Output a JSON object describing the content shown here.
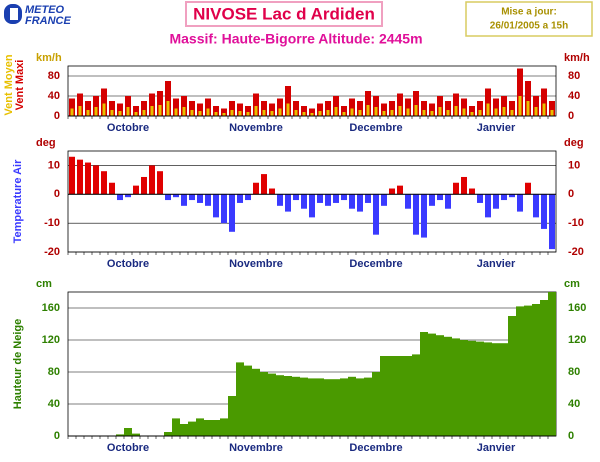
{
  "header": {
    "logo": [
      "METEO",
      "FRANCE"
    ],
    "title": "NIVOSE Lac d Ardiden",
    "subtitle": "Massif: Haute-Bigorre Altitude: 2445m",
    "update": [
      "Mise a jour:",
      "26/01/2005 a 15h"
    ]
  },
  "chart_data": [
    {
      "type": "bar",
      "unit": "km/h",
      "ylim": [
        0,
        100
      ],
      "yticks": [
        0,
        40,
        80
      ],
      "grid": true,
      "categories": [
        null,
        null,
        null,
        null,
        null,
        null,
        null,
        "Octobre",
        null,
        null,
        null,
        null,
        null,
        null,
        null,
        null,
        null,
        null,
        null,
        null,
        null,
        null,
        null,
        "Novembre",
        null,
        null,
        null,
        null,
        null,
        null,
        null,
        null,
        null,
        null,
        null,
        null,
        null,
        null,
        "Decembre",
        null,
        null,
        null,
        null,
        null,
        null,
        null,
        null,
        null,
        null,
        null,
        null,
        null,
        null,
        "Janvier",
        null,
        null,
        null,
        null,
        null,
        null,
        null
      ],
      "series": [
        {
          "name": "Vent Maxi",
          "color": "#d40000",
          "values": [
            35,
            45,
            30,
            40,
            55,
            30,
            25,
            40,
            20,
            30,
            45,
            50,
            70,
            35,
            40,
            30,
            25,
            35,
            20,
            15,
            30,
            25,
            20,
            45,
            30,
            25,
            35,
            60,
            30,
            20,
            15,
            25,
            30,
            40,
            20,
            35,
            30,
            50,
            40,
            25,
            30,
            45,
            35,
            50,
            30,
            25,
            40,
            30,
            45,
            35,
            20,
            30,
            55,
            35,
            40,
            30,
            95,
            70,
            40,
            55,
            30
          ]
        },
        {
          "name": "Vent Moyen",
          "color": "#e8c000",
          "values": [
            15,
            20,
            12,
            18,
            25,
            12,
            10,
            18,
            8,
            12,
            20,
            22,
            30,
            15,
            18,
            12,
            10,
            15,
            8,
            6,
            12,
            10,
            8,
            20,
            12,
            10,
            15,
            25,
            12,
            8,
            6,
            10,
            12,
            18,
            8,
            15,
            12,
            22,
            18,
            10,
            12,
            20,
            15,
            22,
            12,
            10,
            18,
            12,
            20,
            15,
            8,
            12,
            25,
            15,
            18,
            12,
            40,
            30,
            18,
            25,
            12
          ]
        }
      ]
    },
    {
      "type": "bar",
      "unit": "deg",
      "y_label": "Temperature Air",
      "ylim": [
        -20,
        15
      ],
      "yticks": [
        -20,
        -10,
        0,
        10
      ],
      "grid": true,
      "colors": {
        "above": "#e00000",
        "below": "#3a3aff"
      },
      "categories": [
        null,
        null,
        null,
        null,
        null,
        null,
        null,
        "Octobre",
        null,
        null,
        null,
        null,
        null,
        null,
        null,
        null,
        null,
        null,
        null,
        null,
        null,
        null,
        null,
        "Novembre",
        null,
        null,
        null,
        null,
        null,
        null,
        null,
        null,
        null,
        null,
        null,
        null,
        null,
        null,
        "Decembre",
        null,
        null,
        null,
        null,
        null,
        null,
        null,
        null,
        null,
        null,
        null,
        null,
        null,
        null,
        "Janvier",
        null,
        null,
        null,
        null,
        null,
        null,
        null
      ],
      "values": [
        13,
        12,
        11,
        10,
        8,
        4,
        -2,
        -1,
        3,
        6,
        10,
        8,
        -2,
        -1,
        -4,
        -2,
        -3,
        -4,
        -8,
        -10,
        -13,
        -3,
        -2,
        4,
        7,
        2,
        -4,
        -6,
        -2,
        -5,
        -8,
        -3,
        -4,
        -3,
        -2,
        -5,
        -6,
        -3,
        -14,
        -4,
        2,
        3,
        -5,
        -14,
        -15,
        -4,
        -2,
        -5,
        4,
        6,
        2,
        -3,
        -8,
        -5,
        -2,
        -1,
        -6,
        4,
        -8,
        -12,
        -19
      ]
    },
    {
      "type": "bar",
      "unit": "cm",
      "y_label": "Hauteur de Neige",
      "ylim": [
        0,
        180
      ],
      "yticks": [
        0,
        40,
        80,
        120,
        160
      ],
      "grid": true,
      "color": "#4a9a00",
      "categories": [
        null,
        null,
        null,
        null,
        null,
        null,
        null,
        "Octobre",
        null,
        null,
        null,
        null,
        null,
        null,
        null,
        null,
        null,
        null,
        null,
        null,
        null,
        null,
        null,
        "Novembre",
        null,
        null,
        null,
        null,
        null,
        null,
        null,
        null,
        null,
        null,
        null,
        null,
        null,
        null,
        "Decembre",
        null,
        null,
        null,
        null,
        null,
        null,
        null,
        null,
        null,
        null,
        null,
        null,
        null,
        null,
        "Janvier",
        null,
        null,
        null,
        null,
        null,
        null,
        null
      ],
      "values": [
        0,
        0,
        0,
        0,
        0,
        0,
        2,
        10,
        3,
        0,
        0,
        0,
        5,
        22,
        15,
        18,
        22,
        20,
        20,
        22,
        50,
        92,
        88,
        84,
        80,
        78,
        76,
        75,
        74,
        73,
        72,
        72,
        71,
        71,
        72,
        74,
        72,
        73,
        80,
        100,
        100,
        100,
        100,
        102,
        130,
        128,
        126,
        124,
        122,
        120,
        119,
        118,
        117,
        116,
        116,
        150,
        162,
        163,
        165,
        170,
        180
      ]
    }
  ]
}
